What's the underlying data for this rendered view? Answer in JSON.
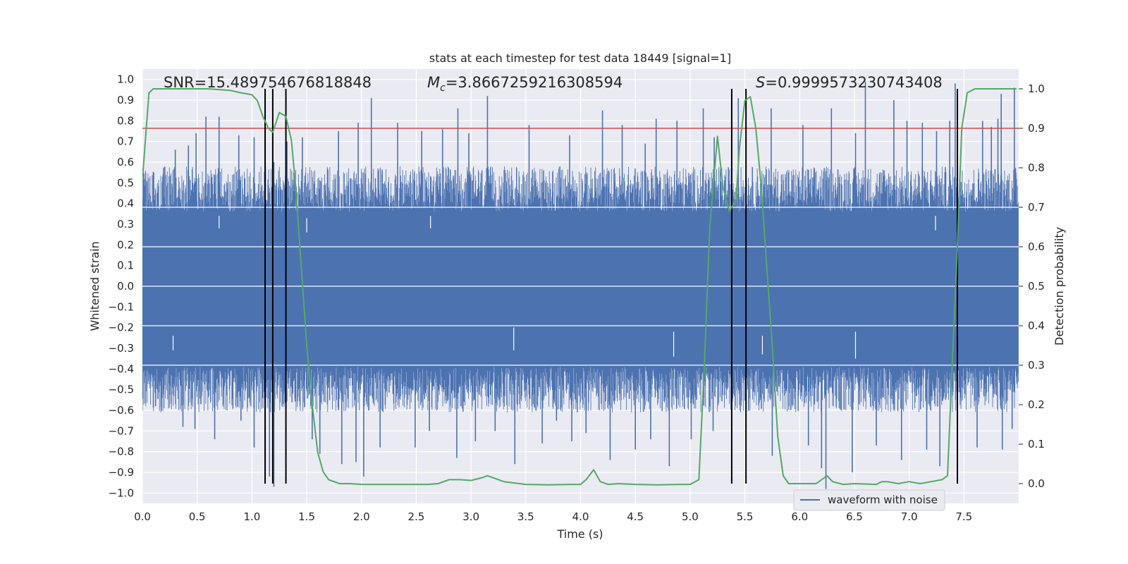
{
  "chart_data": {
    "type": "line",
    "title": "stats at each timestep for test data 18449 [signal=1]",
    "xlabel": "Time (s)",
    "ylabel_left": "Whitened strain",
    "ylabel_right": "Detection probability",
    "xlim": [
      0.0,
      8.0
    ],
    "ylim_left": [
      -1.05,
      1.05
    ],
    "ylim_right": [
      -0.05,
      1.05
    ],
    "xticks": [
      "0.0",
      "0.5",
      "1.0",
      "1.5",
      "2.0",
      "2.5",
      "3.0",
      "3.5",
      "4.0",
      "4.5",
      "5.0",
      "5.5",
      "6.0",
      "6.5",
      "7.0",
      "7.5"
    ],
    "yticks_left": [
      "-1.0",
      "-0.9",
      "-0.8",
      "-0.7",
      "-0.6",
      "-0.5",
      "-0.4",
      "-0.3",
      "-0.2",
      "-0.1",
      "0.0",
      "0.1",
      "0.2",
      "0.3",
      "0.4",
      "0.5",
      "0.6",
      "0.7",
      "0.8",
      "0.9",
      "1.0"
    ],
    "yticks_right": [
      "0.0",
      "0.1",
      "0.2",
      "0.3",
      "0.4",
      "0.5",
      "0.6",
      "0.7",
      "0.8",
      "0.9",
      "1.0"
    ],
    "annotations": {
      "snr": "SNR=15.489754676818848",
      "mc_symbol": "M",
      "mc_sub": "c",
      "mc_value": "=3.8667259216308594",
      "s_symbol": "S",
      "s_value": "=0.9999573230743408"
    },
    "legend": {
      "label": "waveform with noise",
      "placement": "lower-right"
    },
    "threshold": {
      "value": 0.9,
      "axis": "right",
      "color": "#c44e52"
    },
    "vertical_lines": [
      1.12,
      1.19,
      1.31,
      5.38,
      5.51,
      7.44
    ],
    "detection_probability": {
      "color": "#55a868",
      "x": [
        0.0,
        0.06,
        0.1,
        0.2,
        0.3,
        0.4,
        0.5,
        0.6,
        0.7,
        0.8,
        0.9,
        1.0,
        1.05,
        1.1,
        1.15,
        1.19,
        1.25,
        1.31,
        1.36,
        1.4,
        1.45,
        1.5,
        1.55,
        1.6,
        1.65,
        1.7,
        1.8,
        1.9,
        2.0,
        2.2,
        2.4,
        2.6,
        2.7,
        2.8,
        2.9,
        3.0,
        3.1,
        3.15,
        3.2,
        3.3,
        3.5,
        3.7,
        3.9,
        4.0,
        4.05,
        4.12,
        4.18,
        4.25,
        4.35,
        4.5,
        4.7,
        4.9,
        5.0,
        5.08,
        5.13,
        5.18,
        5.25,
        5.3,
        5.36,
        5.42,
        5.45,
        5.5,
        5.55,
        5.6,
        5.65,
        5.7,
        5.75,
        5.8,
        5.85,
        5.9,
        6.0,
        6.15,
        6.25,
        6.3,
        6.4,
        6.5,
        6.7,
        6.75,
        6.8,
        6.9,
        7.0,
        7.1,
        7.2,
        7.3,
        7.35,
        7.4,
        7.44,
        7.48,
        7.53,
        7.6,
        7.7,
        7.8,
        7.98
      ],
      "y": [
        0.77,
        0.99,
        1.0,
        1.0,
        1.0,
        1.0,
        1.0,
        1.0,
        0.998,
        0.996,
        0.99,
        0.985,
        0.97,
        0.93,
        0.9,
        0.89,
        0.94,
        0.93,
        0.87,
        0.75,
        0.55,
        0.35,
        0.2,
        0.08,
        0.03,
        0.01,
        0.0,
        0.0,
        -0.002,
        -0.002,
        -0.002,
        -0.002,
        0.0,
        0.01,
        0.01,
        0.008,
        0.015,
        0.02,
        0.015,
        0.005,
        -0.002,
        -0.003,
        -0.002,
        -0.002,
        0.01,
        0.035,
        0.005,
        -0.002,
        0.0,
        -0.002,
        -0.003,
        -0.002,
        -0.002,
        0.01,
        0.3,
        0.65,
        0.88,
        0.75,
        0.69,
        0.72,
        0.85,
        0.97,
        0.98,
        0.9,
        0.75,
        0.55,
        0.35,
        0.12,
        0.02,
        0.0,
        0.0,
        0.0,
        0.02,
        0.005,
        -0.002,
        0.0,
        -0.002,
        0.005,
        0.005,
        0.0,
        0.005,
        0.0,
        0.005,
        0.01,
        0.02,
        0.35,
        0.6,
        0.9,
        0.99,
        1.0,
        1.0,
        1.0,
        1.0
      ]
    },
    "waveform": {
      "color": "#4c72b0",
      "samples": 2048,
      "band_lower": -0.45,
      "band_upper": 0.42,
      "spikes_up": [
        [
          0.1,
          0.55
        ],
        [
          0.3,
          0.66
        ],
        [
          0.42,
          0.68
        ],
        [
          0.49,
          0.74
        ],
        [
          0.58,
          0.82
        ],
        [
          0.7,
          0.82
        ],
        [
          0.88,
          0.73
        ],
        [
          1.02,
          0.72
        ],
        [
          1.2,
          0.6
        ],
        [
          1.32,
          0.7
        ],
        [
          1.46,
          0.72
        ],
        [
          1.79,
          0.75
        ],
        [
          1.97,
          0.79
        ],
        [
          2.09,
          0.91
        ],
        [
          2.33,
          0.79
        ],
        [
          2.55,
          0.75
        ],
        [
          2.74,
          0.76
        ],
        [
          2.88,
          0.86
        ],
        [
          2.98,
          0.74
        ],
        [
          3.15,
          0.92
        ],
        [
          3.53,
          0.78
        ],
        [
          3.9,
          0.73
        ],
        [
          4.2,
          0.85
        ],
        [
          4.38,
          0.78
        ],
        [
          4.59,
          0.69
        ],
        [
          4.69,
          0.81
        ],
        [
          4.88,
          0.8
        ],
        [
          5.12,
          0.86
        ],
        [
          5.22,
          0.72
        ],
        [
          5.44,
          0.91
        ],
        [
          5.74,
          0.86
        ],
        [
          6.03,
          0.78
        ],
        [
          6.29,
          0.86
        ],
        [
          6.51,
          0.74
        ],
        [
          6.6,
          0.99
        ],
        [
          6.86,
          0.9
        ],
        [
          6.98,
          0.8
        ],
        [
          7.12,
          0.79
        ],
        [
          7.25,
          0.75
        ],
        [
          7.37,
          0.8
        ],
        [
          7.42,
          0.98
        ],
        [
          7.67,
          0.8
        ],
        [
          7.75,
          0.77
        ],
        [
          7.81,
          0.81
        ],
        [
          7.84,
          0.93
        ],
        [
          7.96,
          0.96
        ]
      ],
      "spikes_down": [
        [
          0.12,
          -0.58
        ],
        [
          0.37,
          -0.68
        ],
        [
          0.48,
          -0.69
        ],
        [
          0.66,
          -0.74
        ],
        [
          0.9,
          -0.65
        ],
        [
          1.02,
          -0.78
        ],
        [
          1.16,
          -0.92
        ],
        [
          1.2,
          -0.97
        ],
        [
          1.55,
          -0.74
        ],
        [
          1.62,
          -0.81
        ],
        [
          1.82,
          -0.86
        ],
        [
          1.95,
          -0.85
        ],
        [
          2.02,
          -0.92
        ],
        [
          2.17,
          -0.78
        ],
        [
          2.49,
          -0.78
        ],
        [
          2.62,
          -0.7
        ],
        [
          2.87,
          -0.83
        ],
        [
          3.04,
          -0.75
        ],
        [
          3.22,
          -0.7
        ],
        [
          3.4,
          -0.86
        ],
        [
          3.65,
          -0.76
        ],
        [
          3.78,
          -0.65
        ],
        [
          3.92,
          -0.75
        ],
        [
          4.05,
          -0.71
        ],
        [
          4.27,
          -0.84
        ],
        [
          4.5,
          -0.79
        ],
        [
          4.64,
          -0.74
        ],
        [
          4.81,
          -0.87
        ],
        [
          5.01,
          -0.74
        ],
        [
          5.21,
          -0.7
        ],
        [
          5.51,
          -0.77
        ],
        [
          5.75,
          -0.82
        ],
        [
          6.08,
          -0.77
        ],
        [
          6.2,
          -0.88
        ],
        [
          6.24,
          -0.98
        ],
        [
          6.48,
          -0.9
        ],
        [
          6.7,
          -0.77
        ],
        [
          6.93,
          -0.84
        ],
        [
          7.16,
          -0.79
        ],
        [
          7.28,
          -0.87
        ],
        [
          7.44,
          -0.84
        ],
        [
          7.62,
          -0.78
        ],
        [
          7.85,
          -0.79
        ],
        [
          7.94,
          -0.69
        ]
      ],
      "white_gaps": [
        [
          0.28,
          -0.31,
          -0.24
        ],
        [
          2.63,
          0.28,
          0.34
        ],
        [
          3.39,
          -0.31,
          -0.2
        ],
        [
          4.85,
          -0.34,
          -0.22
        ],
        [
          6.51,
          -0.35,
          -0.22
        ],
        [
          7.24,
          0.27,
          0.34
        ],
        [
          0.7,
          0.28,
          0.34
        ],
        [
          5.66,
          -0.33,
          -0.24
        ],
        [
          1.5,
          0.26,
          0.33
        ]
      ]
    }
  }
}
